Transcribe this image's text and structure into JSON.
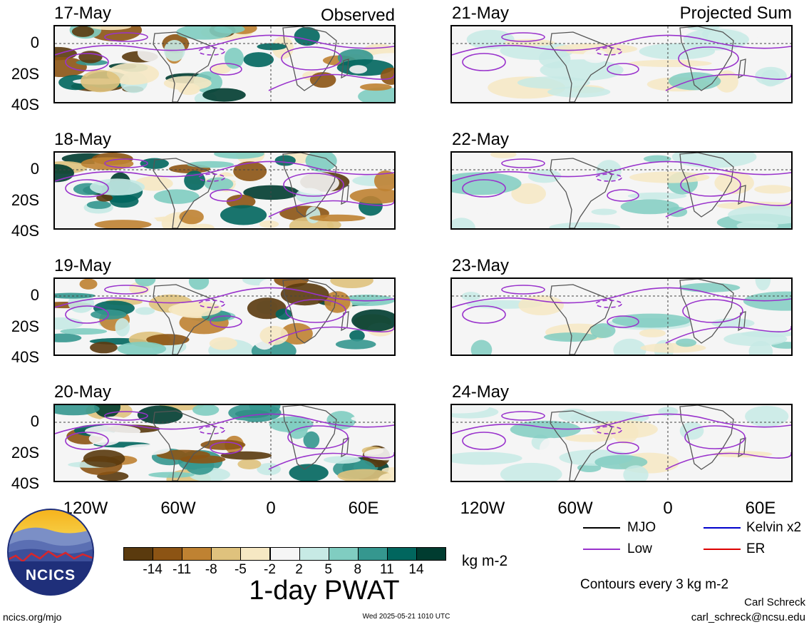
{
  "left_panels": [
    {
      "date": "17-May",
      "tag": "Observed"
    },
    {
      "date": "18-May",
      "tag": ""
    },
    {
      "date": "19-May",
      "tag": ""
    },
    {
      "date": "20-May",
      "tag": ""
    }
  ],
  "right_panels": [
    {
      "date": "21-May",
      "tag": "Projected Sum"
    },
    {
      "date": "22-May",
      "tag": ""
    },
    {
      "date": "23-May",
      "tag": ""
    },
    {
      "date": "24-May",
      "tag": ""
    }
  ],
  "y_ticks": [
    "0",
    "20S",
    "40S"
  ],
  "x_ticks": [
    "120W",
    "60W",
    "0",
    "60E"
  ],
  "colorbar": {
    "colors": [
      "#5a3a0e",
      "#8c5414",
      "#bf8232",
      "#dfc27d",
      "#f6e8c3",
      "#f5f5f5",
      "#c7eae5",
      "#80cdc1",
      "#35978f",
      "#01665e",
      "#003c30"
    ],
    "labels": [
      "-14",
      "-11",
      "-8",
      "-5",
      "-2",
      "2",
      "5",
      "8",
      "11",
      "14"
    ],
    "units": "kg m-2",
    "title": "1-day PWAT"
  },
  "legend": {
    "items": [
      {
        "label": "MJO",
        "color": "#000000"
      },
      {
        "label": "Kelvin x2",
        "color": "#0000cc"
      },
      {
        "label": "Low",
        "color": "#9932cc"
      },
      {
        "label": "ER",
        "color": "#dd0000"
      }
    ],
    "note": "Contours every 3 kg m-2"
  },
  "logo": {
    "text": "NCICS"
  },
  "footer": {
    "left": "ncics.org/mjo",
    "center": "Wed 2025-05-21 1010 UTC",
    "author": "Carl Schreck",
    "email": "carl_schreck@ncsu.edu"
  }
}
